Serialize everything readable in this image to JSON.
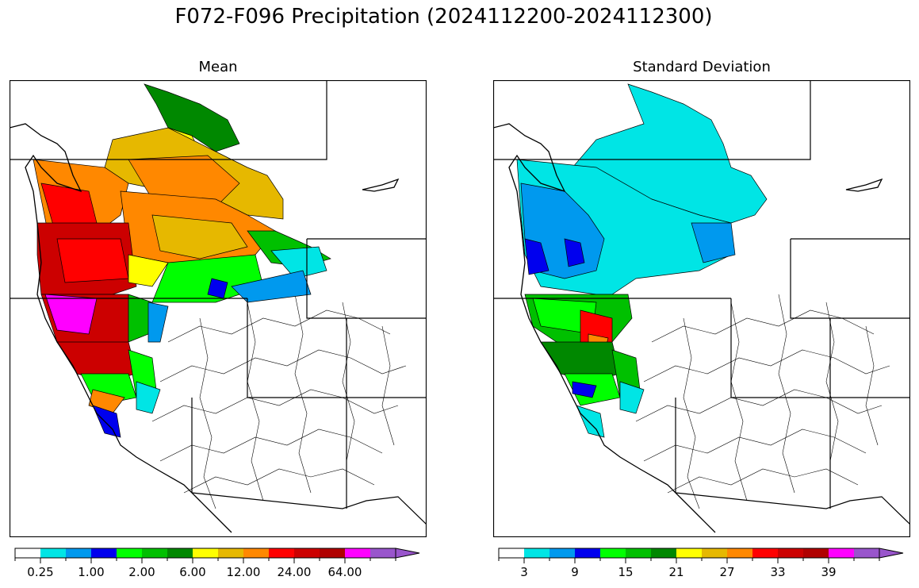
{
  "suptitle": "F072-F096 Precipitation (2024112200-2024112300)",
  "panels": [
    {
      "title": "Mean",
      "colorbar": {
        "colors": [
          "#ffffff",
          "#00e5e5",
          "#0099ee",
          "#0000ee",
          "#00ff00",
          "#00c000",
          "#008800",
          "#ffff00",
          "#e6b800",
          "#ff8800",
          "#ff0000",
          "#cc0000",
          "#b00000",
          "#ff00ff",
          "#9955cc"
        ],
        "tick_labels": [
          "0.25",
          "1.00",
          "2.00",
          "6.00",
          "12.00",
          "24.00",
          "64.00"
        ],
        "extend": "max"
      }
    },
    {
      "title": "Standard Deviation",
      "colorbar": {
        "colors": [
          "#ffffff",
          "#00e5e5",
          "#0099ee",
          "#0000ee",
          "#00ff00",
          "#00c000",
          "#008800",
          "#ffff00",
          "#e6b800",
          "#ff8800",
          "#ff0000",
          "#cc0000",
          "#b00000",
          "#ff00ff",
          "#9955cc"
        ],
        "tick_labels": [
          "3",
          "9",
          "15",
          "21",
          "27",
          "33",
          "39"
        ],
        "extend": "max"
      }
    }
  ]
}
